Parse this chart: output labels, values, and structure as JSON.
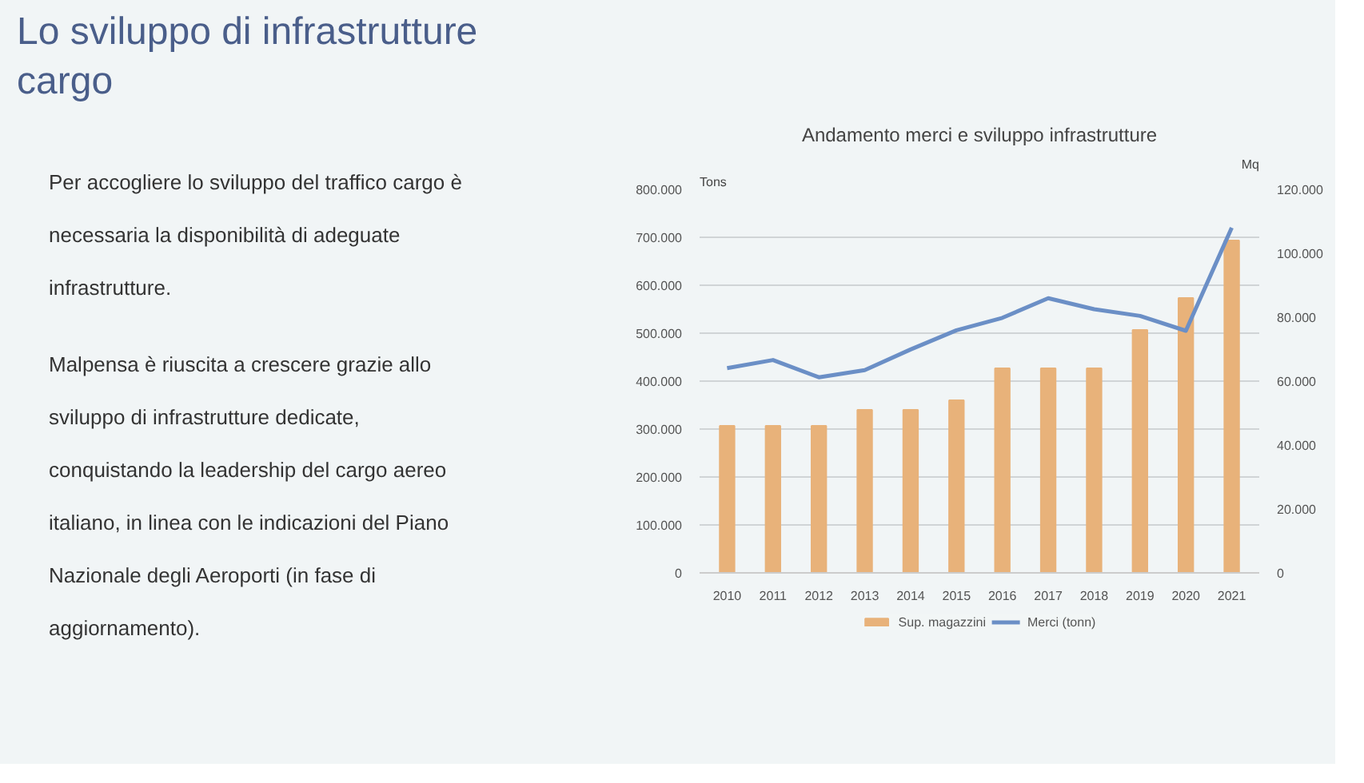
{
  "chart_data": {
    "type": "bar",
    "title": "Andamento merci e sviluppo infrastrutture",
    "annotations": [
      "Lo sviluppo di infrastrutture cargo",
      "Per accogliere lo sviluppo del traffico cargo è necessaria la disponibilità di adeguate infrastrutture.",
      "Malpensa è riuscita a crescere grazie allo sviluppo di infrastrutture dedicate, conquistando la leadership del cargo aereo italiano, in linea con le indicazioni del Piano Nazionale degli Aeroporti (in fase di aggiornamento)."
    ],
    "ylabel": "Tons",
    "y2label": "Mq",
    "categories": [
      "2010",
      "2011",
      "2012",
      "2013",
      "2014",
      "2015",
      "2016",
      "2017",
      "2018",
      "2019",
      "2020",
      "2021"
    ],
    "series": [
      {
        "name": "Sup. magazzini",
        "axis": "y2",
        "color": "#e8b27a",
        "values": [
          46000,
          46000,
          46000,
          51000,
          51000,
          54000,
          64000,
          64000,
          64000,
          76000,
          86000,
          104000
        ]
      },
      {
        "name": "Merci (tonn)",
        "type": "line",
        "color": "#6b8fc6",
        "values": [
          427000,
          444000,
          408000,
          423000,
          466000,
          506000,
          532000,
          573000,
          550000,
          536000,
          505000,
          720000
        ]
      }
    ],
    "ylim": [
      0,
      800000
    ],
    "yticks": [
      {
        "value": 0,
        "label": "0"
      },
      {
        "value": 100000,
        "label": "100.000"
      },
      {
        "value": 200000,
        "label": "200.000"
      },
      {
        "value": 300000,
        "label": "300.000"
      },
      {
        "value": 400000,
        "label": "400.000"
      },
      {
        "value": 500000,
        "label": "500.000"
      },
      {
        "value": 600000,
        "label": "600.000"
      },
      {
        "value": 700000,
        "label": "700.000"
      },
      {
        "value": 800000,
        "label": "800.000"
      }
    ],
    "y2lim": [
      0,
      120000
    ],
    "y2ticks": [
      {
        "value": 0,
        "label": "0"
      },
      {
        "value": 20000,
        "label": "20.000"
      },
      {
        "value": 40000,
        "label": "40.000"
      },
      {
        "value": 60000,
        "label": "60.000"
      },
      {
        "value": 80000,
        "label": "80.000"
      },
      {
        "value": 100000,
        "label": "100.000"
      },
      {
        "value": 120000,
        "label": "120.000"
      }
    ],
    "grid": "y",
    "legend": "bottom",
    "marker": "none",
    "line_style": "solid"
  }
}
